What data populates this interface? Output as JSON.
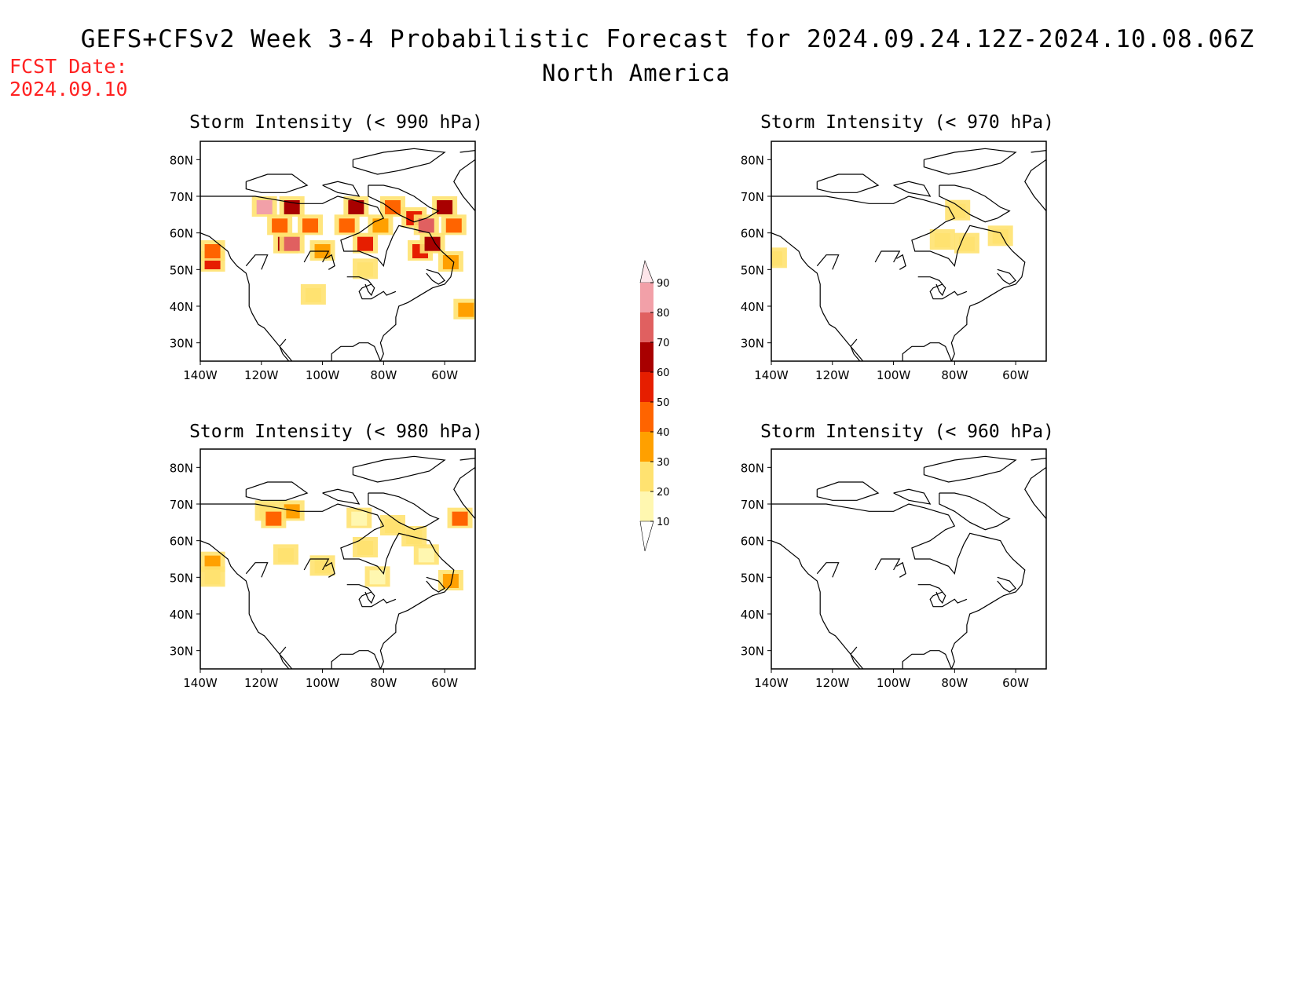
{
  "header": {
    "title": "GEFS+CFSv2 Week 3-4 Probabilistic Forecast for 2024.09.24.12Z-2024.10.08.06Z",
    "subtitle": "North America",
    "fcst_label": "FCST Date:",
    "fcst_date": "2024.09.10"
  },
  "map_axes": {
    "lon_ticks": [
      "140W",
      "120W",
      "100W",
      "80W",
      "60W"
    ],
    "lat_ticks": [
      "80N",
      "70N",
      "60N",
      "50N",
      "40N",
      "30N"
    ]
  },
  "panels": [
    {
      "id": "p990",
      "title": "Storm Intensity (< 990 hPa)",
      "blobs": [
        {
          "lon": -136,
          "lat": 52,
          "level": 50
        },
        {
          "lon": -136,
          "lat": 55,
          "level": 40
        },
        {
          "lon": -119,
          "lat": 67,
          "level": 80
        },
        {
          "lon": -110,
          "lat": 67,
          "level": 60
        },
        {
          "lon": -114,
          "lat": 62,
          "level": 40
        },
        {
          "lon": -112,
          "lat": 57,
          "level": 60
        },
        {
          "lon": -110,
          "lat": 57,
          "level": 70
        },
        {
          "lon": -104,
          "lat": 62,
          "level": 40
        },
        {
          "lon": -100,
          "lat": 55,
          "level": 30
        },
        {
          "lon": -92,
          "lat": 62,
          "level": 40
        },
        {
          "lon": -89,
          "lat": 67,
          "level": 60
        },
        {
          "lon": -86,
          "lat": 57,
          "level": 50
        },
        {
          "lon": -81,
          "lat": 62,
          "level": 30
        },
        {
          "lon": -77,
          "lat": 67,
          "level": 40
        },
        {
          "lon": -70,
          "lat": 64,
          "level": 50
        },
        {
          "lon": -66,
          "lat": 62,
          "level": 70
        },
        {
          "lon": -68,
          "lat": 55,
          "level": 50
        },
        {
          "lon": -64,
          "lat": 57,
          "level": 60
        },
        {
          "lon": -57,
          "lat": 62,
          "level": 40
        },
        {
          "lon": -58,
          "lat": 52,
          "level": 30
        },
        {
          "lon": -86,
          "lat": 50,
          "level": 20
        },
        {
          "lon": -103,
          "lat": 43,
          "level": 20
        },
        {
          "lon": -53,
          "lat": 39,
          "level": 30
        },
        {
          "lon": -60,
          "lat": 67,
          "level": 60
        }
      ]
    },
    {
      "id": "p970",
      "title": "Storm Intensity (< 970 hPa)",
      "blobs": [
        {
          "lon": -79,
          "lat": 66,
          "level": 20
        },
        {
          "lon": -84,
          "lat": 58,
          "level": 20
        },
        {
          "lon": -76,
          "lat": 57,
          "level": 20
        },
        {
          "lon": -65,
          "lat": 59,
          "level": 20
        },
        {
          "lon": -139,
          "lat": 53,
          "level": 20
        }
      ]
    },
    {
      "id": "p980",
      "title": "Storm Intensity (< 980 hPa)",
      "blobs": [
        {
          "lon": -136,
          "lat": 54,
          "level": 30
        },
        {
          "lon": -136,
          "lat": 50,
          "level": 20
        },
        {
          "lon": -118,
          "lat": 68,
          "level": 20
        },
        {
          "lon": -110,
          "lat": 68,
          "level": 30
        },
        {
          "lon": -116,
          "lat": 66,
          "level": 40
        },
        {
          "lon": -112,
          "lat": 56,
          "level": 20
        },
        {
          "lon": -100,
          "lat": 53,
          "level": 20
        },
        {
          "lon": -88,
          "lat": 66,
          "level": 10
        },
        {
          "lon": -86,
          "lat": 58,
          "level": 20
        },
        {
          "lon": -77,
          "lat": 64,
          "level": 20
        },
        {
          "lon": -70,
          "lat": 61,
          "level": 20
        },
        {
          "lon": -66,
          "lat": 56,
          "level": 10
        },
        {
          "lon": -55,
          "lat": 66,
          "level": 40
        },
        {
          "lon": -58,
          "lat": 49,
          "level": 30
        },
        {
          "lon": -82,
          "lat": 50,
          "level": 10
        }
      ]
    },
    {
      "id": "p960",
      "title": "Storm Intensity (< 960 hPa)",
      "blobs": []
    }
  ],
  "colorbar": {
    "labels": [
      "90",
      "80",
      "70",
      "60",
      "50",
      "40",
      "30",
      "20",
      "10"
    ],
    "colors": {
      "10": "#fff7b0",
      "20": "#ffe270",
      "30": "#ffa000",
      "40": "#ff6400",
      "50": "#e61e00",
      "60": "#a80000",
      "70": "#e06060",
      "80": "#f2a0a8",
      "90": "#fde6ea"
    }
  }
}
